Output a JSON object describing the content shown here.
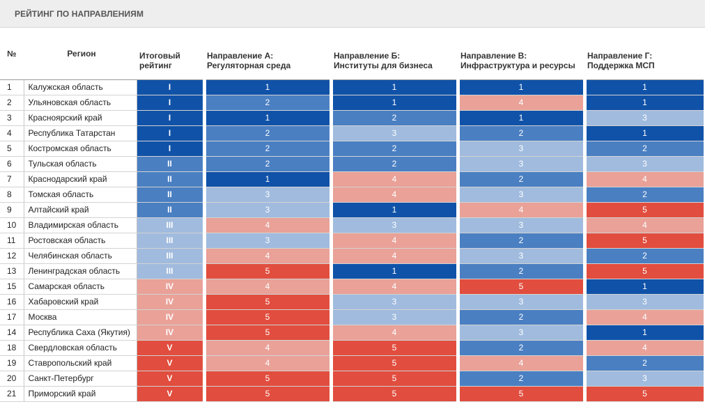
{
  "title": "РЕЙТИНГ ПО НАПРАВЛЕНИЯМ",
  "colors": {
    "1": "#1052a8",
    "2": "#4a7fc2",
    "3": "#a0bbde",
    "4": "#e9a198",
    "5": "#e14d3e"
  },
  "headers": {
    "num": "№",
    "region": "Регион",
    "total": [
      "Итоговый",
      "рейтинг"
    ],
    "a": [
      "Направление А:",
      "Регуляторная среда"
    ],
    "b": [
      "Направление Б:",
      "Институты для бизнеса"
    ],
    "c": [
      "Направление В:",
      "Инфраструктура и ресурсы"
    ],
    "d": [
      "Направление Г:",
      "Поддержка МСП"
    ]
  },
  "rows": [
    {
      "num": "1",
      "region": "Калужская область",
      "total": "I",
      "total_level": 1,
      "a": 1,
      "b": 1,
      "c": 1,
      "d": 1
    },
    {
      "num": "2",
      "region": "Ульяновская область",
      "total": "I",
      "total_level": 1,
      "a": 2,
      "b": 1,
      "c": 4,
      "d": 1
    },
    {
      "num": "3",
      "region": "Красноярский край",
      "total": "I",
      "total_level": 1,
      "a": 1,
      "b": 2,
      "c": 1,
      "d": 3
    },
    {
      "num": "4",
      "region": "Республика Татарстан",
      "total": "I",
      "total_level": 1,
      "a": 2,
      "b": 3,
      "c": 2,
      "d": 1
    },
    {
      "num": "5",
      "region": "Костромская область",
      "total": "I",
      "total_level": 1,
      "a": 2,
      "b": 2,
      "c": 3,
      "d": 2
    },
    {
      "num": "6",
      "region": "Тульская область",
      "total": "II",
      "total_level": 2,
      "a": 2,
      "b": 2,
      "c": 3,
      "d": 3
    },
    {
      "num": "7",
      "region": "Краснодарский край",
      "total": "II",
      "total_level": 2,
      "a": 1,
      "b": 4,
      "c": 2,
      "d": 4
    },
    {
      "num": "8",
      "region": "Томская область",
      "total": "II",
      "total_level": 2,
      "a": 3,
      "b": 4,
      "c": 3,
      "d": 2
    },
    {
      "num": "9",
      "region": "Алтайский край",
      "total": "II",
      "total_level": 2,
      "a": 3,
      "b": 1,
      "c": 4,
      "d": 5
    },
    {
      "num": "10",
      "region": "Владимирская область",
      "total": "III",
      "total_level": 3,
      "a": 4,
      "b": 3,
      "c": 3,
      "d": 4
    },
    {
      "num": "11",
      "region": "Ростовская область",
      "total": "III",
      "total_level": 3,
      "a": 3,
      "b": 4,
      "c": 2,
      "d": 5
    },
    {
      "num": "12",
      "region": "Челябинская область",
      "total": "III",
      "total_level": 3,
      "a": 4,
      "b": 4,
      "c": 3,
      "d": 2
    },
    {
      "num": "13",
      "region": "Ленинградская область",
      "total": "III",
      "total_level": 3,
      "a": 5,
      "b": 1,
      "c": 2,
      "d": 5
    },
    {
      "num": "15",
      "region": "Самарская область",
      "total": "IV",
      "total_level": 4,
      "a": 4,
      "b": 4,
      "c": 5,
      "d": 1
    },
    {
      "num": "16",
      "region": "Хабаровский край",
      "total": "IV",
      "total_level": 4,
      "a": 5,
      "b": 3,
      "c": 3,
      "d": 3
    },
    {
      "num": "17",
      "region": "Москва",
      "total": "IV",
      "total_level": 4,
      "a": 5,
      "b": 3,
      "c": 2,
      "d": 4
    },
    {
      "num": "14",
      "region": "Республика Саха (Якутия)",
      "total": "IV",
      "total_level": 4,
      "a": 5,
      "b": 4,
      "c": 3,
      "d": 1
    },
    {
      "num": "18",
      "region": "Свердловская область",
      "total": "V",
      "total_level": 5,
      "a": 4,
      "b": 5,
      "c": 2,
      "d": 4
    },
    {
      "num": "19",
      "region": "Ставропольский край",
      "total": "V",
      "total_level": 5,
      "a": 4,
      "b": 5,
      "c": 4,
      "d": 2
    },
    {
      "num": "20",
      "region": "Санкт-Петербург",
      "total": "V",
      "total_level": 5,
      "a": 5,
      "b": 5,
      "c": 2,
      "d": 3
    },
    {
      "num": "21",
      "region": "Приморский край",
      "total": "V",
      "total_level": 5,
      "a": 5,
      "b": 5,
      "c": 5,
      "d": 5
    }
  ]
}
